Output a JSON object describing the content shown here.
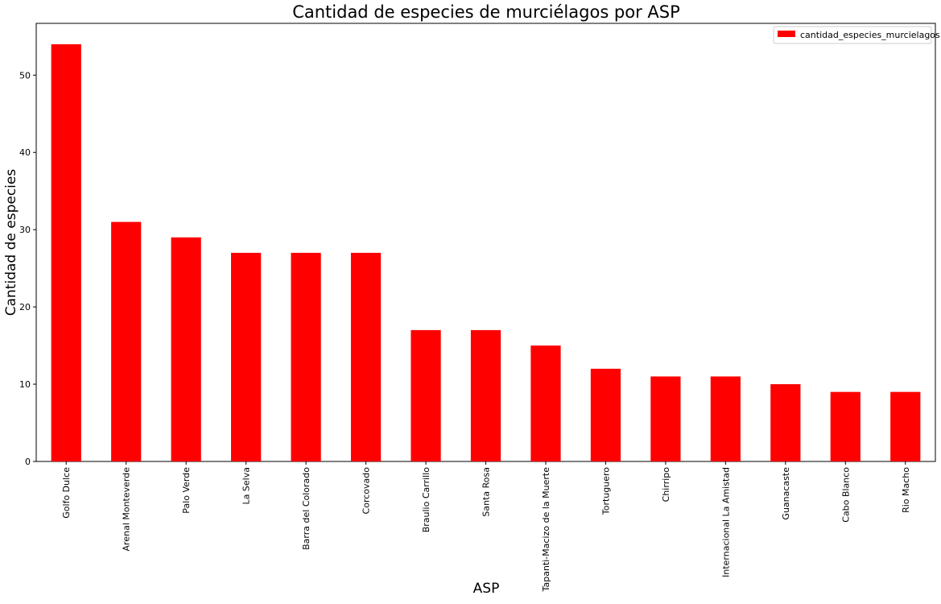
{
  "chart_data": {
    "type": "bar",
    "title": "Cantidad de especies de murciélagos por ASP",
    "xlabel": "ASP",
    "ylabel": "Cantidad de especies",
    "categories": [
      "Golfo Dulce",
      "Arenal Monteverde",
      "Palo Verde",
      "La Selva",
      "Barra del Colorado",
      "Corcovado",
      "Braulio Carrillo",
      "Santa Rosa",
      "Tapanti-Macizo de la Muerte",
      "Tortuguero",
      "Chirripo",
      "Internacional La Amistad",
      "Guanacaste",
      "Cabo Blanco",
      "Rio Macho"
    ],
    "series": [
      {
        "name": "cantidad_especies_murcielagos",
        "values": [
          54,
          31,
          29,
          27,
          27,
          27,
          17,
          17,
          15,
          12,
          11,
          11,
          10,
          9,
          9
        ],
        "color": "#ff0000"
      }
    ],
    "ylim": [
      0,
      56.7
    ],
    "yticks": [
      0,
      10,
      20,
      30,
      40,
      50
    ],
    "grid": false,
    "legend_position": "top-right"
  }
}
